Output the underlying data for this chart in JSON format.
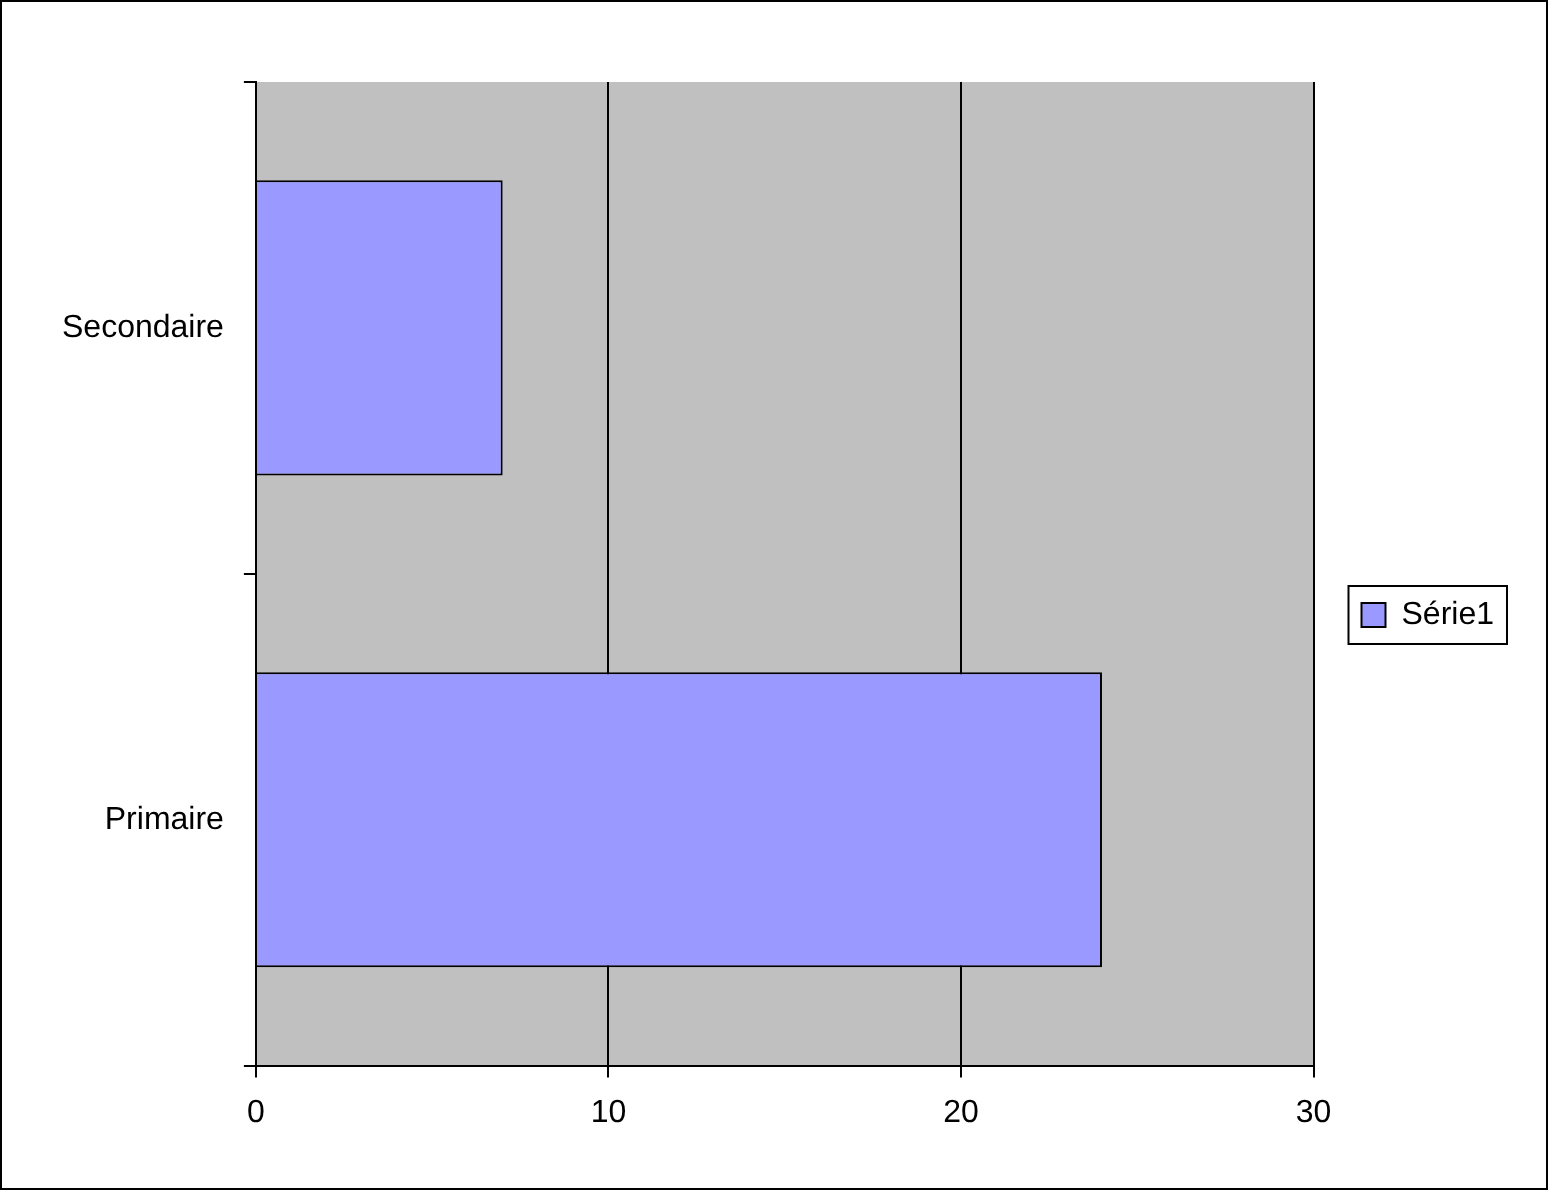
{
  "chart_data": {
    "type": "bar",
    "orientation": "horizontal",
    "categories": [
      "Secondaire",
      "Primaire"
    ],
    "series": [
      {
        "name": "Série1",
        "color": "#9999ff",
        "values": [
          7,
          24
        ]
      }
    ],
    "xlim": [
      0,
      30
    ],
    "xticks": [
      0,
      10,
      20,
      30
    ],
    "grid": "x",
    "legend": "right"
  }
}
